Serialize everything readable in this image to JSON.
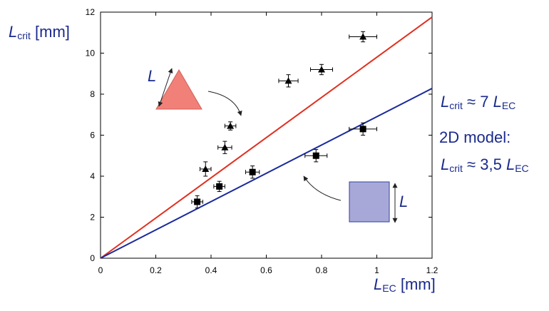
{
  "chart_data": {
    "type": "scatter",
    "xlim": [
      0,
      1.2
    ],
    "ylim": [
      0,
      12
    ],
    "x_ticks": [
      "0",
      "0.2",
      "0.4",
      "0.6",
      "0.8",
      "1",
      "1.2"
    ],
    "y_ticks": [
      "0",
      "2",
      "4",
      "6",
      "8",
      "10",
      "12"
    ],
    "xlabel": {
      "symbol": "L",
      "sub": "EC",
      "unit": "[mm]"
    },
    "ylabel": {
      "symbol": "L",
      "sub": "crit",
      "unit": "[mm]"
    },
    "grid": false,
    "series": [
      {
        "marker": "triangle",
        "points": [
          {
            "x": 0.38,
            "y": 4.35,
            "xerr": 0.02,
            "yerr": 0.35
          },
          {
            "x": 0.45,
            "y": 5.4,
            "xerr": 0.025,
            "yerr": 0.3
          },
          {
            "x": 0.47,
            "y": 6.45,
            "xerr": 0.02,
            "yerr": 0.2
          },
          {
            "x": 0.68,
            "y": 8.65,
            "xerr": 0.035,
            "yerr": 0.3
          },
          {
            "x": 0.8,
            "y": 9.2,
            "xerr": 0.04,
            "yerr": 0.25
          },
          {
            "x": 0.95,
            "y": 10.8,
            "xerr": 0.05,
            "yerr": 0.25
          }
        ],
        "fit": {
          "slope": 9.8,
          "color": "#e03020"
        }
      },
      {
        "marker": "square",
        "points": [
          {
            "x": 0.35,
            "y": 2.75,
            "xerr": 0.02,
            "yerr": 0.3
          },
          {
            "x": 0.43,
            "y": 3.5,
            "xerr": 0.02,
            "yerr": 0.25
          },
          {
            "x": 0.55,
            "y": 4.2,
            "xerr": 0.025,
            "yerr": 0.3
          },
          {
            "x": 0.78,
            "y": 5.0,
            "xerr": 0.04,
            "yerr": 0.3
          },
          {
            "x": 0.95,
            "y": 6.3,
            "xerr": 0.05,
            "yerr": 0.3
          }
        ],
        "fit": {
          "slope": 6.9,
          "color": "#1a2a9c"
        }
      }
    ],
    "annotations": {
      "red_fit": {
        "lhs": "L",
        "lhs_sub": "crit",
        "rel": "≈ 7",
        "rhs": "L",
        "rhs_sub": "EC"
      },
      "model_title": "2D model:",
      "blue_fit": {
        "lhs": "L",
        "lhs_sub": "crit",
        "rel": "≈ 3,5",
        "rhs": "L",
        "rhs_sub": "EC"
      },
      "triangle_side": "L",
      "square_side": "L"
    }
  },
  "colors": {
    "text": "#1a2a8c",
    "triangle_fill": "#f08078",
    "square_fill": "#a8a8d8",
    "square_stroke": "#3040a0"
  }
}
